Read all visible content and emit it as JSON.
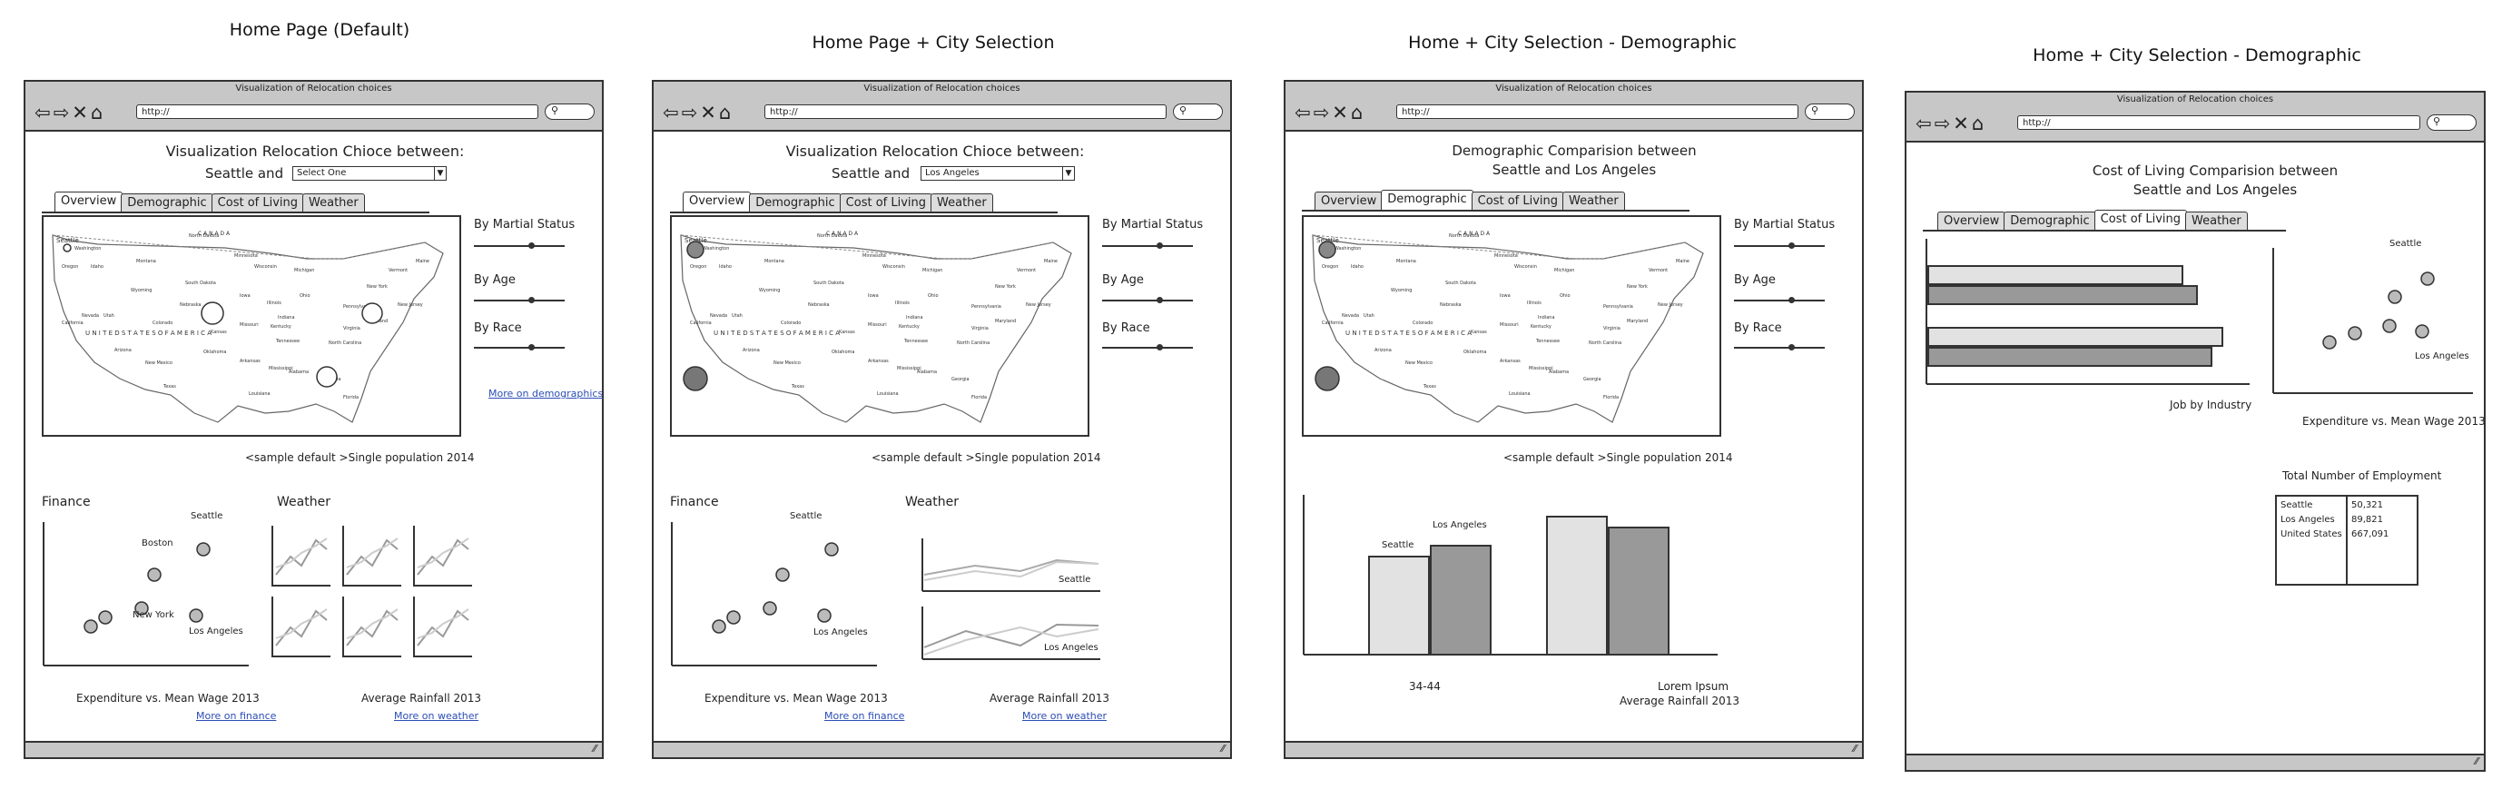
{
  "frames": [
    {
      "title": "Home Page (Default)",
      "window_title": "Visualization of Relocation choices",
      "url": "http://",
      "heading_line1": "Visualization Relocation Chioce between:",
      "select_prefix": "Seattle and",
      "select_value": "Select One",
      "tabs": [
        "Overview",
        "Demographic",
        "Cost of Living",
        "Weather"
      ],
      "active_tab": "Overview",
      "filters": [
        "By Martial Status",
        "By Age",
        "By Race"
      ],
      "more_demographics": "More on demographics",
      "map_caption": "<sample default >Single population 2014",
      "finance_title": "Finance",
      "weather_title": "Weather",
      "finance_labels": [
        "Seattle",
        "Boston",
        "New York",
        "Los Angeles"
      ],
      "finance_caption": "Expenditure vs. Mean Wage 2013",
      "weather_caption": "Average Rainfall 2013",
      "more_finance": "More on finance",
      "more_weather": "More on weather"
    },
    {
      "title": "Home Page + City Selection",
      "window_title": "Visualization of Relocation choices",
      "url": "http://",
      "heading_line1": "Visualization Relocation Chioce between:",
      "select_prefix": "Seattle and",
      "select_value": "Los Angeles",
      "tabs": [
        "Overview",
        "Demographic",
        "Cost of Living",
        "Weather"
      ],
      "active_tab": "Overview",
      "filters": [
        "By Martial Status",
        "By Age",
        "By Race"
      ],
      "map_caption": "<sample default >Single population 2014",
      "finance_title": "Finance",
      "weather_title": "Weather",
      "finance_labels": [
        "Seattle",
        "Los Angeles"
      ],
      "weather_labels": [
        "Seattle",
        "Los Angeles"
      ],
      "finance_caption": "Expenditure vs. Mean Wage 2013",
      "weather_caption": "Average Rainfall 2013",
      "more_finance": "More on finance",
      "more_weather": "More on weather"
    },
    {
      "title": "Home + City Selection - Demographic",
      "window_title": "Visualization of Relocation choices",
      "url": "http://",
      "heading_line1": "Demographic Comparision between",
      "heading_line2": "Seattle and Los Angeles",
      "tabs": [
        "Overview",
        "Demographic",
        "Cost of Living",
        "Weather"
      ],
      "active_tab": "Demographic",
      "filters": [
        "By Martial Status",
        "By Age",
        "By Race"
      ],
      "map_caption": "<sample default >Single population 2014",
      "bar_labels": [
        "Seattle",
        "Los Angeles"
      ],
      "bar_axis_left": "34-44",
      "bar_axis_right_1": "Lorem Ipsum",
      "bar_axis_right_2": "Average Rainfall 2013"
    },
    {
      "title": "Home + City Selection - Demographic",
      "window_title": "Visualization of Relocation choices",
      "url": "http://",
      "heading_line1": "Cost of Living Comparision between",
      "heading_line2": "Seattle and Los Angeles",
      "tabs": [
        "Overview",
        "Demographic",
        "Cost of Living",
        "Weather"
      ],
      "active_tab": "Cost of Living",
      "hbar_caption": "Job by Industry",
      "scatter_labels": [
        "Seattle",
        "Los Angeles"
      ],
      "scatter_caption": "Expenditure vs. Mean Wage 2013",
      "employment_title": "Total Number of Employment",
      "employment_rows": [
        {
          "city": "Seattle",
          "value": "50,321"
        },
        {
          "city": "Los Angeles",
          "value": "89,821"
        },
        {
          "city": "United States",
          "value": "667,091"
        }
      ]
    }
  ],
  "map": {
    "country_label": "U N I T E D     S T A T E S     O F     A M E R I C A",
    "canada_label": "C A N A D A",
    "state_labels": [
      "Seattle",
      "Washington",
      "Oregon",
      "Idaho",
      "Montana",
      "North Dakota",
      "Minnesota",
      "South Dakota",
      "Wyoming",
      "Nebraska",
      "Iowa",
      "Illinois",
      "Ohio",
      "Michigan",
      "Wisconsin",
      "Nevada",
      "Utah",
      "Colorado",
      "Kansas",
      "Missouri",
      "California",
      "Arizona",
      "New Mexico",
      "Oklahoma",
      "Texas",
      "Arkansas",
      "Tennessee",
      "Kentucky",
      "North Carolina",
      "Georgia",
      "Alabama",
      "Mississippi",
      "Louisiana",
      "Pennsylvania",
      "New York",
      "Vermont",
      "Maine",
      "Maryland",
      "New Jersey",
      "Virginia",
      "Indiana",
      "Florida"
    ]
  },
  "icons": {
    "back": "back-arrow-icon",
    "forward": "forward-arrow-icon",
    "stop": "close-icon",
    "home": "home-icon",
    "search": "search-icon",
    "resize": "resize-grip-icon"
  }
}
